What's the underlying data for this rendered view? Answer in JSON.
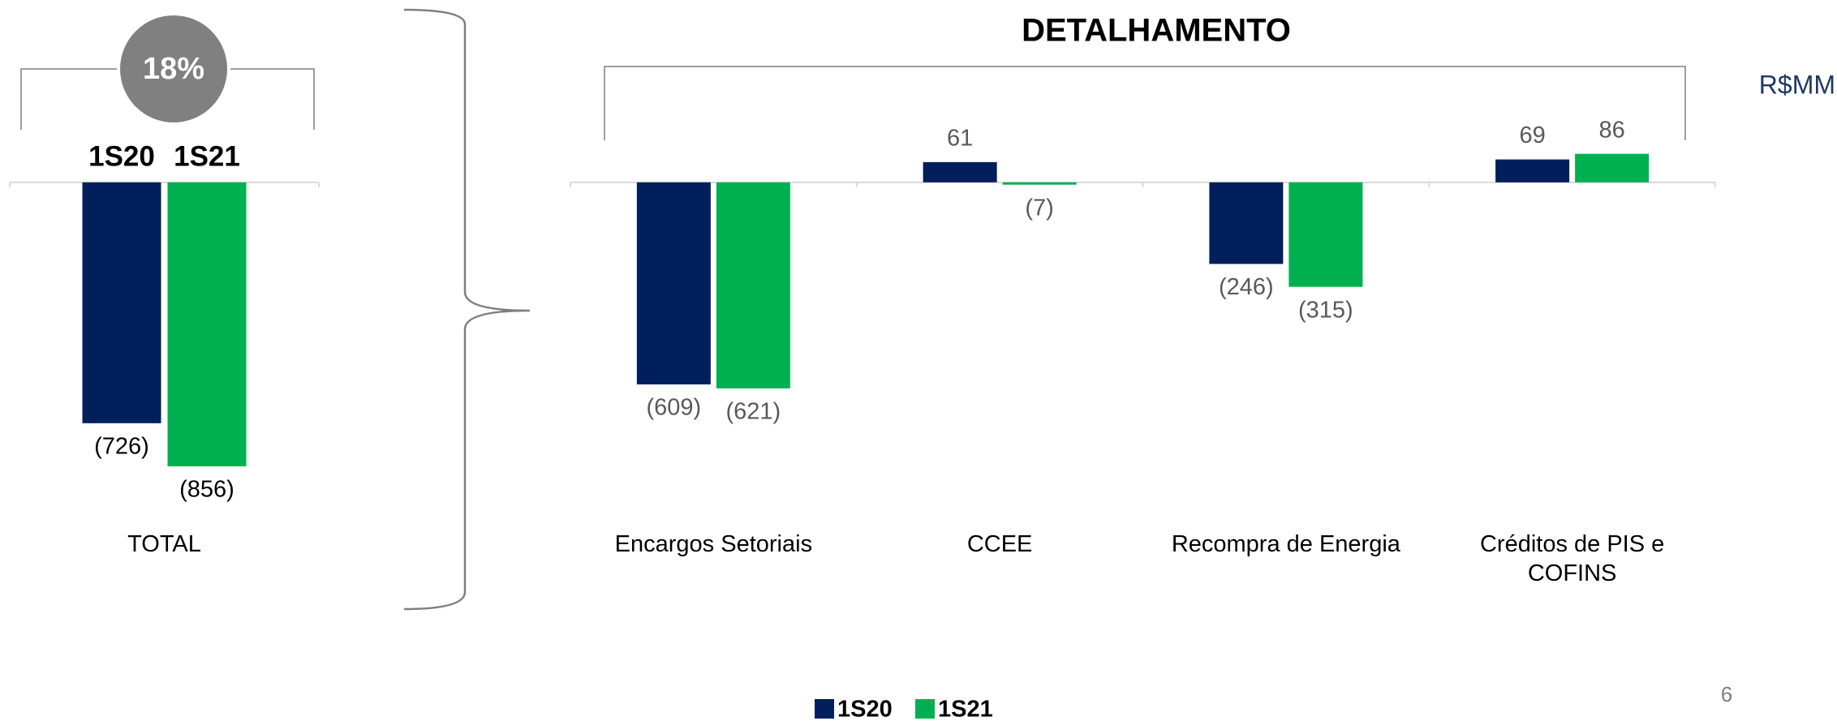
{
  "chart_data": [
    {
      "type": "bar",
      "annotation": "18%",
      "categories": [
        "TOTAL"
      ],
      "series": [
        {
          "name": "1S20",
          "color": "#001f5b",
          "values": [
            -726
          ],
          "value_labels": [
            "(726)"
          ]
        },
        {
          "name": "1S21",
          "color": "#00b050",
          "values": [
            -856
          ],
          "value_labels": [
            "(856)"
          ]
        }
      ],
      "ylim": [
        -900,
        200
      ]
    },
    {
      "type": "bar",
      "title": "DETALHAMENTO",
      "unit": "R$MM",
      "categories": [
        "Encargos Setoriais",
        "CCEE",
        "Recompra de Energia",
        "Créditos de PIS e COFINS"
      ],
      "series": [
        {
          "name": "1S20",
          "color": "#001f5b",
          "values": [
            -609,
            61,
            -246,
            69
          ],
          "value_labels": [
            "(609)",
            "61",
            "(246)",
            "69"
          ]
        },
        {
          "name": "1S21",
          "color": "#00b050",
          "values": [
            -621,
            -7,
            -315,
            86
          ],
          "value_labels": [
            "(621)",
            "(7)",
            "(315)",
            "86"
          ]
        }
      ],
      "ylim": [
        -900,
        200
      ]
    }
  ],
  "page_number": "6"
}
